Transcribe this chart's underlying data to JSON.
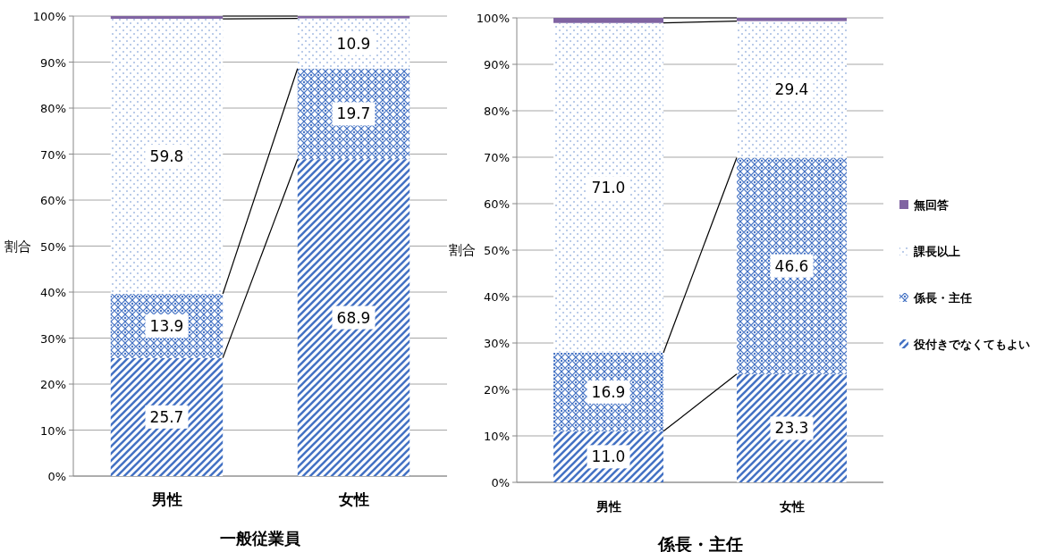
{
  "chart_data": [
    {
      "type": "bar",
      "stacked": true,
      "xlabel": "一般従業員",
      "ylabel": "割合",
      "categories": [
        "男性",
        "女性"
      ],
      "ylim": [
        0,
        100
      ],
      "yticks": [
        {
          "value": 0,
          "label": "0%"
        },
        {
          "value": 10,
          "label": "10%"
        },
        {
          "value": 20,
          "label": "20%"
        },
        {
          "value": 30,
          "label": "30%"
        },
        {
          "value": 40,
          "label": "40%"
        },
        {
          "value": 50,
          "label": "50%"
        },
        {
          "value": 60,
          "label": "60%"
        },
        {
          "value": 70,
          "label": "70%"
        },
        {
          "value": 80,
          "label": "80%"
        },
        {
          "value": 90,
          "label": "90%"
        },
        {
          "value": 100,
          "label": "100%"
        }
      ],
      "grid": "y",
      "series": [
        {
          "color": "#4472c4",
          "values": [
            25.7,
            68.9
          ],
          "value_labels": [
            "25.7",
            "68.9"
          ]
        },
        {
          "color": "#4472c4",
          "values": [
            13.9,
            19.7
          ],
          "value_labels": [
            "13.9",
            "19.7"
          ]
        },
        {
          "color": "#4472c4",
          "values": [
            59.8,
            10.9
          ],
          "value_labels": [
            "59.8",
            "10.9"
          ]
        },
        {
          "color": "#8064a2",
          "values": [
            0.6,
            0.5
          ],
          "value_labels": [
            null,
            null
          ]
        }
      ]
    },
    {
      "type": "bar",
      "stacked": true,
      "xlabel": "係長・主任",
      "ylabel": "割合",
      "categories": [
        "男性",
        "女性"
      ],
      "ylim": [
        0,
        100
      ],
      "yticks": [
        {
          "value": 0,
          "label": "0%"
        },
        {
          "value": 10,
          "label": "10%"
        },
        {
          "value": 20,
          "label": "20%"
        },
        {
          "value": 30,
          "label": "30%"
        },
        {
          "value": 40,
          "label": "40%"
        },
        {
          "value": 50,
          "label": "50%"
        },
        {
          "value": 60,
          "label": "60%"
        },
        {
          "value": 70,
          "label": "70%"
        },
        {
          "value": 80,
          "label": "80%"
        },
        {
          "value": 90,
          "label": "90%"
        },
        {
          "value": 100,
          "label": "100%"
        }
      ],
      "grid": "y",
      "legend": "right",
      "series": [
        {
          "name": "役付きでなくてもよい",
          "color": "#4472c4",
          "values": [
            11.0,
            23.3
          ],
          "value_labels": [
            "11.0",
            "23.3"
          ]
        },
        {
          "name": "係長・主任",
          "color": "#4472c4",
          "values": [
            16.9,
            46.6
          ],
          "value_labels": [
            "16.9",
            "46.6"
          ]
        },
        {
          "name": "課長以上",
          "color": "#4472c4",
          "values": [
            71.0,
            29.4
          ],
          "value_labels": [
            "71.0",
            "29.4"
          ]
        },
        {
          "name": "無回答",
          "color": "#8064a2",
          "values": [
            1.1,
            0.7
          ],
          "value_labels": [
            null,
            null
          ]
        }
      ]
    }
  ]
}
